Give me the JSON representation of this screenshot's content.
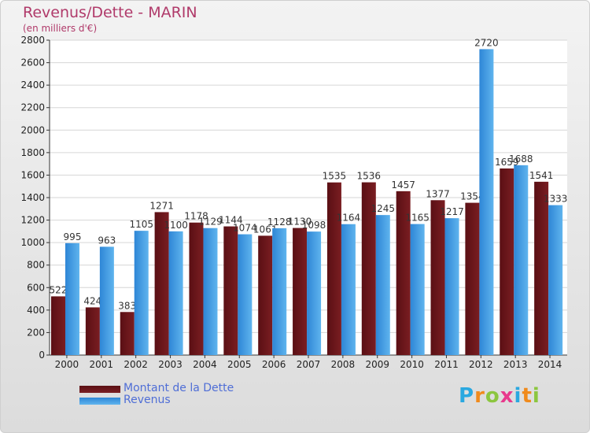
{
  "title": "Revenus/Dette - MARIN",
  "subtitle": "(en milliers d'€)",
  "logo": {
    "text": "Proxiti",
    "colors": [
      "#2aa8e0",
      "#f08a1c",
      "#8cc63f",
      "#e83a8c",
      "#2aa8e0",
      "#f08a1c",
      "#8cc63f"
    ]
  },
  "colors": {
    "dette": "#7a1e22",
    "revenus": "#3f9be0"
  },
  "chart_data": {
    "type": "bar",
    "title": "Revenus/Dette - MARIN",
    "subtitle": "(en milliers d'€)",
    "xlabel": "",
    "ylabel": "",
    "ylim": [
      0,
      2800
    ],
    "yticks": [
      0,
      200,
      400,
      600,
      800,
      1000,
      1200,
      1400,
      1600,
      1800,
      2000,
      2200,
      2400,
      2600,
      2800
    ],
    "grid": true,
    "legend_position": "bottom-left",
    "categories": [
      "2000",
      "2001",
      "2002",
      "2003",
      "2004",
      "2005",
      "2006",
      "2007",
      "2008",
      "2009",
      "2010",
      "2011",
      "2012",
      "2013",
      "2014"
    ],
    "series": [
      {
        "name": "Montant de la Dette",
        "values": [
          522,
          424,
          383,
          1271,
          1178,
          1144,
          1061,
          1130,
          1535,
          1536,
          1457,
          1377,
          1354,
          1659,
          1541
        ]
      },
      {
        "name": "Revenus",
        "values": [
          995,
          963,
          1105,
          1100,
          1129,
          1074,
          1128,
          1098,
          1164,
          1245,
          1165,
          1217,
          2720,
          1688,
          1333
        ]
      }
    ]
  }
}
